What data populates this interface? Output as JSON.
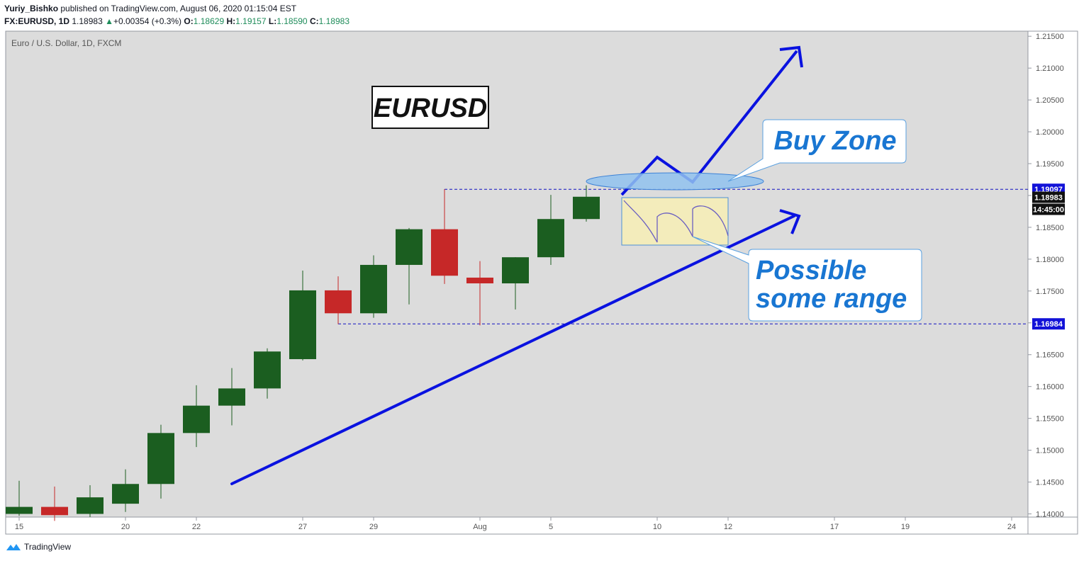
{
  "header": {
    "author": "Yuriy_Bishko",
    "published_text": "published on TradingView.com, August 06, 2020 01:15:04 EST",
    "symbol": "FX:EURUSD, 1D",
    "last": "1.18983",
    "change": "+0.00354 (+0.3%)",
    "o_label": "O:",
    "o_value": "1.18629",
    "h_label": "H:",
    "h_value": "1.19157",
    "l_label": "L:",
    "l_value": "1.18590",
    "c_label": "C:",
    "c_value": "1.18983"
  },
  "chart_data": {
    "type": "candlestick",
    "title": "Euro / U.S. Dollar, 1D, FXCM",
    "ylim": [
      1.1395,
      1.2158
    ],
    "y_ticks": [
      "1.14000",
      "1.14500",
      "1.15000",
      "1.15500",
      "1.16000",
      "1.16500",
      "1.17000",
      "1.17500",
      "1.18000",
      "1.18500",
      "1.19000",
      "1.19500",
      "1.20000",
      "1.20500",
      "1.21000",
      "1.21500"
    ],
    "x_ticks": [
      {
        "label": "15",
        "day": 0
      },
      {
        "label": "20",
        "day": 3
      },
      {
        "label": "22",
        "day": 5
      },
      {
        "label": "27",
        "day": 8
      },
      {
        "label": "29",
        "day": 10
      },
      {
        "label": "Aug",
        "day": 13
      },
      {
        "label": "5",
        "day": 15
      },
      {
        "label": "10",
        "day": 18
      },
      {
        "label": "12",
        "day": 20
      },
      {
        "label": "17",
        "day": 23
      },
      {
        "label": "19",
        "day": 25
      },
      {
        "label": "24",
        "day": 28
      }
    ],
    "candles": [
      {
        "day": 0,
        "o": 1.14,
        "h": 1.1452,
        "l": 1.1397,
        "c": 1.1411
      },
      {
        "day": 1,
        "o": 1.1411,
        "h": 1.1443,
        "l": 1.1389,
        "c": 1.1398
      },
      {
        "day": 2,
        "o": 1.14,
        "h": 1.1445,
        "l": 1.1395,
        "c": 1.1426
      },
      {
        "day": 3,
        "o": 1.1416,
        "h": 1.147,
        "l": 1.1403,
        "c": 1.1447
      },
      {
        "day": 4,
        "o": 1.1447,
        "h": 1.154,
        "l": 1.1424,
        "c": 1.1527
      },
      {
        "day": 5,
        "o": 1.1527,
        "h": 1.1602,
        "l": 1.1505,
        "c": 1.157
      },
      {
        "day": 6,
        "o": 1.157,
        "h": 1.1629,
        "l": 1.1539,
        "c": 1.1597
      },
      {
        "day": 7,
        "o": 1.1597,
        "h": 1.166,
        "l": 1.1581,
        "c": 1.1655
      },
      {
        "day": 8,
        "o": 1.1643,
        "h": 1.1782,
        "l": 1.1641,
        "c": 1.1751
      },
      {
        "day": 9,
        "o": 1.1751,
        "h": 1.1773,
        "l": 1.1698,
        "c": 1.1715
      },
      {
        "day": 10,
        "o": 1.1715,
        "h": 1.1806,
        "l": 1.1708,
        "c": 1.1791
      },
      {
        "day": 11,
        "o": 1.1791,
        "h": 1.1849,
        "l": 1.1729,
        "c": 1.1847
      },
      {
        "day": 12,
        "o": 1.1847,
        "h": 1.191,
        "l": 1.1761,
        "c": 1.1774
      },
      {
        "day": 13,
        "o": 1.1771,
        "h": 1.1797,
        "l": 1.1696,
        "c": 1.1762
      },
      {
        "day": 14,
        "o": 1.1762,
        "h": 1.1803,
        "l": 1.1721,
        "c": 1.1803
      },
      {
        "day": 15,
        "o": 1.1803,
        "h": 1.1901,
        "l": 1.1791,
        "c": 1.1863
      },
      {
        "day": 16,
        "o": 1.1863,
        "h": 1.1916,
        "l": 1.1859,
        "c": 1.1898
      }
    ],
    "levels": [
      {
        "value": 1.19097,
        "label": "1.19097"
      },
      {
        "value": 1.16984,
        "label": "1.16984"
      }
    ],
    "current_price_label": "1.18983",
    "countdown_label": "14:45:00",
    "annotations": {
      "title_box": "EURUSD",
      "buy_zone": "Buy Zone",
      "range_line1": "Possible",
      "range_line2": "some range"
    },
    "colors": {
      "up": "#1b5e20",
      "down": "#c62828",
      "background": "#dcdcdc",
      "trend": "#0a12e0",
      "level": "#1010c0",
      "label": "#1976d2"
    }
  },
  "footer": {
    "brand": "TradingView",
    "icon": "tradingview-logo-icon"
  }
}
